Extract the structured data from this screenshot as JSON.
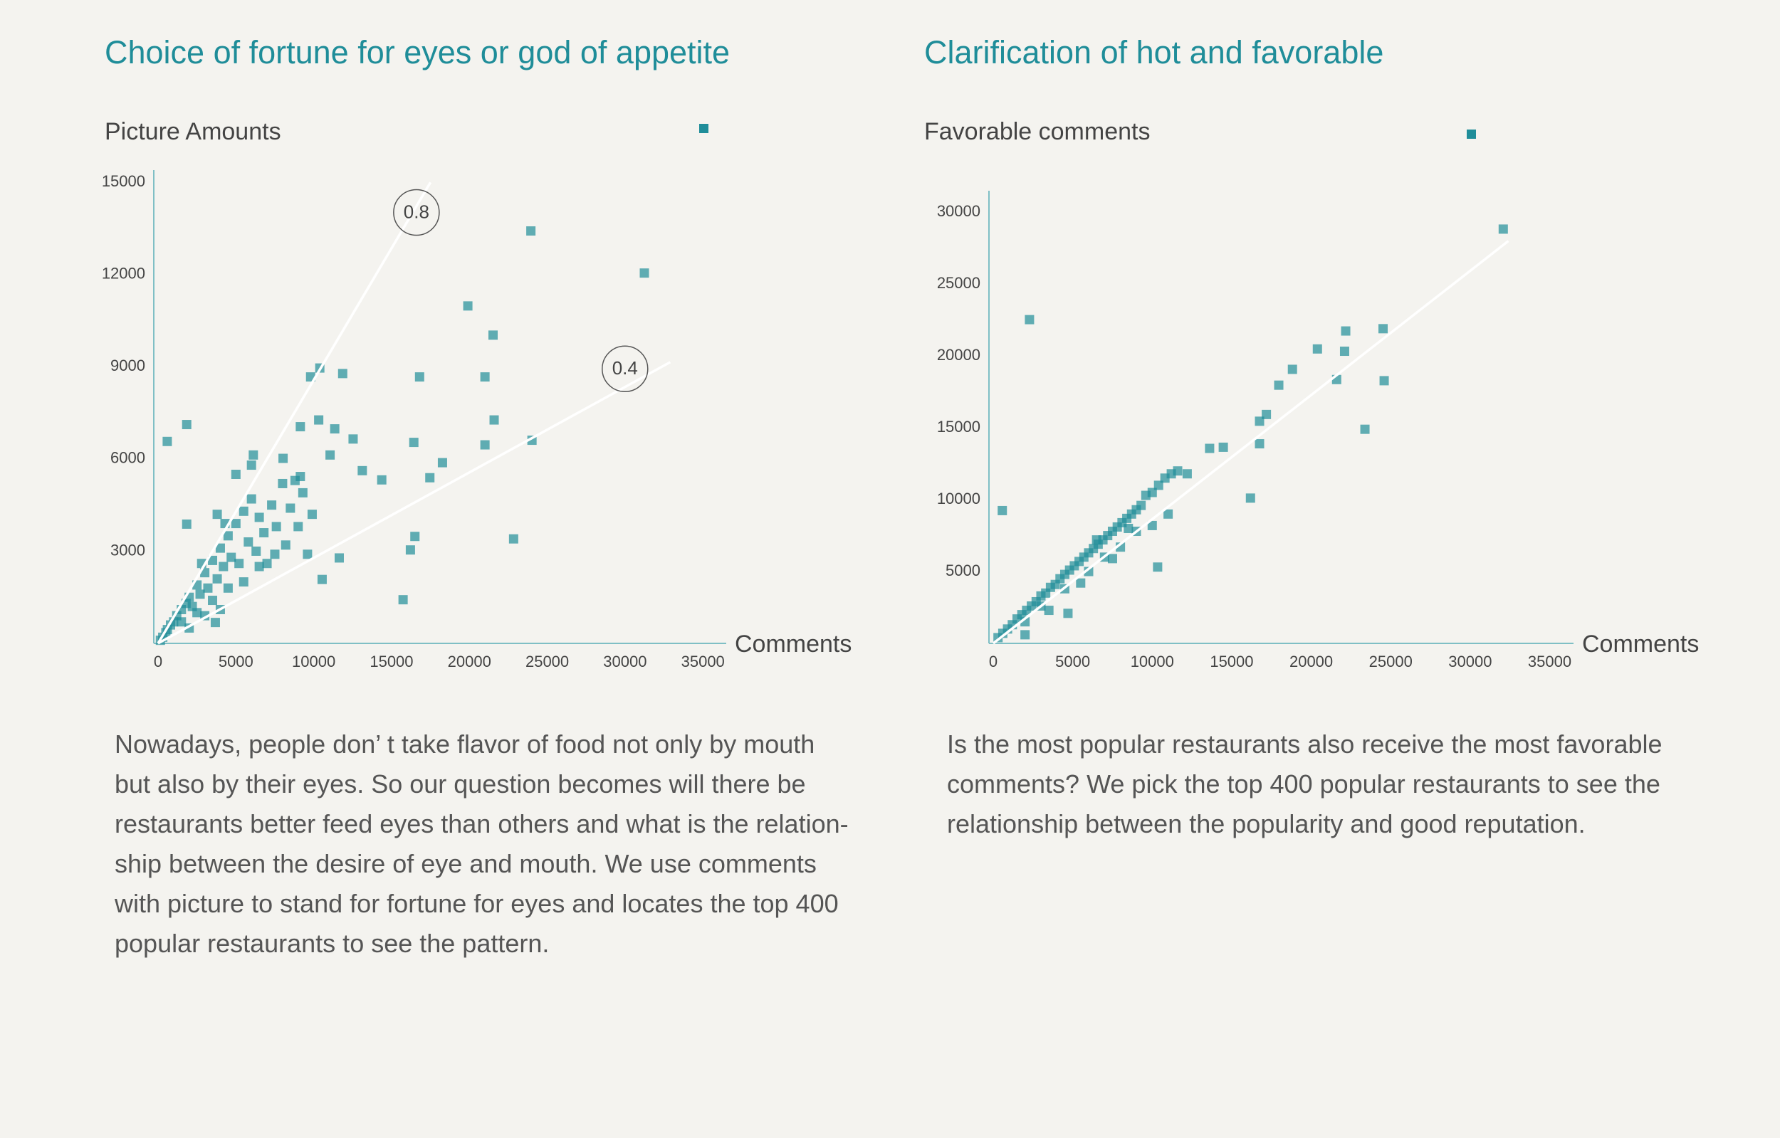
{
  "chart_data": [
    {
      "type": "scatter",
      "title": "Choice of fortune for eyes or god of appetite",
      "ylabel": "Picture Amounts",
      "xlabel": "Comments",
      "color": "#1f8d99",
      "xlim": [
        0,
        36500
      ],
      "ylim": [
        0,
        15400
      ],
      "xticks": [
        0,
        5000,
        10000,
        15000,
        20000,
        25000,
        30000,
        35000
      ],
      "yticks": [
        3000,
        6000,
        9000,
        12000,
        15000
      ],
      "reference_lines": [
        {
          "label": "0.8",
          "x": [
            0,
            17500
          ],
          "y": [
            0,
            15000
          ]
        },
        {
          "label": "0.4",
          "x": [
            0,
            32900
          ],
          "y": [
            0,
            9150
          ]
        }
      ],
      "x": [
        23950,
        31240,
        19900,
        21520,
        16800,
        21000,
        11860,
        10390,
        9800,
        21590,
        10320,
        9140,
        11350,
        12530,
        16430,
        21000,
        24020,
        590,
        1840,
        18270,
        11050,
        13120,
        14370,
        17460,
        9140,
        6120,
        8030,
        1840,
        16500,
        16210,
        22840,
        15740,
        10540,
        11640,
        3680,
        500,
        800,
        1000,
        1200,
        1500,
        1800,
        2000,
        2200,
        2500,
        2700,
        3000,
        3200,
        3500,
        3800,
        4000,
        4200,
        4500,
        4700,
        5000,
        5200,
        5500,
        5800,
        6000,
        6300,
        6500,
        6800,
        7000,
        7300,
        7600,
        8000,
        8200,
        8500,
        8800,
        9000,
        9300,
        9600,
        9900,
        1500,
        2500,
        3500,
        4500,
        5500,
        3000,
        6500,
        2000,
        4000,
        7500,
        5000,
        6000,
        3800,
        300,
        150,
        600,
        4300,
        2800
      ],
      "y": [
        13420,
        12050,
        10980,
        10030,
        8670,
        8670,
        8780,
        8960,
        8670,
        7270,
        7270,
        7050,
        6980,
        6650,
        6540,
        6460,
        6610,
        6570,
        7120,
        5880,
        6130,
        5620,
        5320,
        5390,
        5430,
        6130,
        6020,
        3880,
        3480,
        3040,
        3400,
        1420,
        2080,
        2780,
        680,
        350,
        600,
        700,
        900,
        1100,
        1300,
        1500,
        1200,
        1900,
        1600,
        2300,
        1800,
        2700,
        2100,
        3100,
        2500,
        3500,
        2800,
        3900,
        2600,
        4300,
        3300,
        4700,
        3000,
        4100,
        3600,
        2600,
        4500,
        3800,
        5200,
        3200,
        4400,
        5300,
        3800,
        4900,
        2900,
        4200,
        700,
        1000,
        1400,
        1800,
        2000,
        900,
        2500,
        500,
        1100,
        2900,
        5500,
        5800,
        4200,
        200,
        100,
        450,
        3900,
        2600
      ]
    },
    {
      "type": "scatter",
      "title": "Clarification of hot and favorable",
      "ylabel": "Favorable comments",
      "xlabel": "Comments",
      "color": "#1f8d99",
      "xlim": [
        0,
        36500
      ],
      "ylim": [
        0,
        31500
      ],
      "xticks": [
        0,
        5000,
        10000,
        15000,
        20000,
        25000,
        30000,
        35000
      ],
      "yticks": [
        5000,
        10000,
        15000,
        20000,
        25000,
        30000
      ],
      "reference_lines": [
        {
          "x": [
            0,
            32400
          ],
          "y": [
            0,
            28000
          ]
        }
      ],
      "x": [
        32080,
        24520,
        22170,
        22100,
        20390,
        18820,
        17960,
        21600,
        24590,
        23380,
        2280,
        570,
        17180,
        16750,
        16750,
        14470,
        13610,
        16180,
        10340,
        4700,
        2000,
        300,
        600,
        900,
        1200,
        1500,
        1800,
        2100,
        2400,
        2700,
        3000,
        3300,
        3600,
        3900,
        4200,
        4500,
        4800,
        5100,
        5400,
        5700,
        6000,
        6300,
        6600,
        6900,
        7200,
        7500,
        7800,
        8100,
        8400,
        8700,
        9000,
        9300,
        9600,
        10000,
        10400,
        10800,
        11200,
        11600,
        12200,
        3000,
        4500,
        6000,
        7000,
        8000,
        9000,
        10000,
        11000,
        5500,
        7500,
        2000,
        3500,
        6500,
        8500
      ],
      "y": [
        28830,
        21900,
        21740,
        20330,
        20490,
        19070,
        17970,
        18360,
        18280,
        14900,
        22530,
        9240,
        15930,
        15460,
        13890,
        13650,
        13570,
        10110,
        5310,
        2090,
        600,
        400,
        700,
        1000,
        1300,
        1700,
        2000,
        2300,
        2600,
        2900,
        3300,
        3500,
        3900,
        4100,
        4500,
        4800,
        5100,
        5400,
        5700,
        6000,
        6300,
        6600,
        6900,
        7200,
        7500,
        7800,
        8100,
        8400,
        8700,
        9000,
        9300,
        9600,
        10300,
        10500,
        11000,
        11500,
        11800,
        12000,
        11800,
        2600,
        3800,
        5000,
        6000,
        6700,
        7800,
        8200,
        9000,
        4200,
        5900,
        1500,
        2300,
        7200,
        8000
      ]
    }
  ],
  "paragraphs": [
    [
      "Nowadays, people don’ t take flavor of food not only by mouth",
      "but also by their eyes. So our question becomes will there be",
      "restaurants better feed eyes than others and what is the relation-",
      "ship between the desire of eye and mouth. We use comments",
      "with picture to stand for fortune for eyes and locates the top 400",
      "popular restaurants to see the pattern."
    ],
    [
      "Is the most popular restaurants also receive the most favorable",
      "comments? We pick the top 400 popular restaurants to see the",
      "relationship between the popularity and good reputation."
    ]
  ]
}
